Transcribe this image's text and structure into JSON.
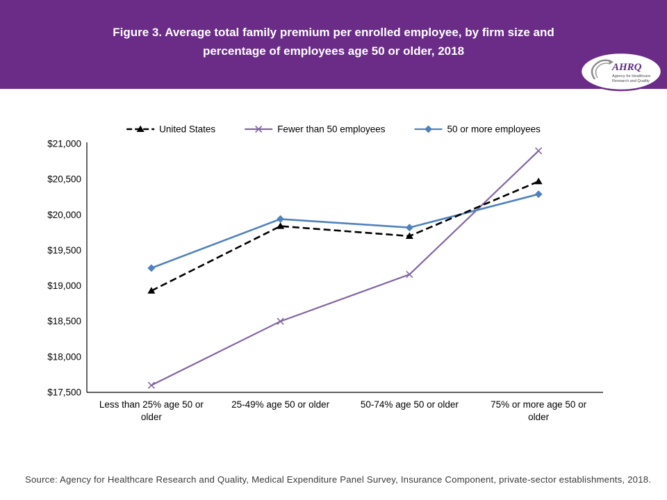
{
  "header": {
    "title": "Figure 3. Average total family premium per enrolled employee, by firm size and percentage of employees age 50 or older, 2018",
    "background_color": "#6a2c87"
  },
  "logo": {
    "name": "AHRQ",
    "tagline_line1": "Agency for Healthcare",
    "tagline_line2": "Research and Quality"
  },
  "source_note": "Source: Agency for Healthcare Research and Quality, Medical Expenditure Panel Survey, Insurance Component, private-sector establishments, 2018.",
  "chart_data": {
    "type": "line",
    "title": "Average total family premium per enrolled employee, by firm size and percentage of employees age 50 or older, 2018",
    "categories": [
      "Less than 25% age 50 or older",
      "25-49% age 50 or older",
      "50-74% age 50 or older",
      "75% or more age 50 or older"
    ],
    "series": [
      {
        "name": "United States",
        "color": "#000000",
        "dash": "10 5",
        "marker": "triangle",
        "values": [
          18930,
          19840,
          19700,
          20470
        ]
      },
      {
        "name": "Fewer than 50 employees",
        "color": "#8064a2",
        "dash": "",
        "marker": "x",
        "values": [
          17600,
          18500,
          19160,
          20900
        ]
      },
      {
        "name": "50 or more employees",
        "color": "#4f81bd",
        "dash": "",
        "marker": "diamond",
        "values": [
          19250,
          19940,
          19820,
          20290
        ]
      }
    ],
    "ylim": [
      17500,
      21000
    ],
    "ytick_step": 500,
    "ytick_format": "$#,###",
    "legend_position": "top",
    "grid": false
  }
}
